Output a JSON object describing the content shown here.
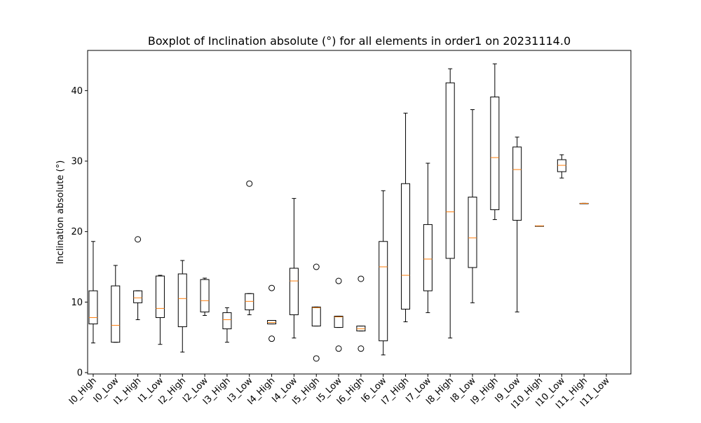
{
  "chart_data": {
    "type": "boxplot",
    "title": "Boxplot of Inclination absolute (°) for all elements in order1 on 20231114.0",
    "xlabel": "",
    "ylabel": "Inclination absolute (°)",
    "ylim": [
      -0.2,
      45.7
    ],
    "yticks": [
      0,
      10,
      20,
      30,
      40
    ],
    "categories": [
      "I0_High",
      "I0_Low",
      "I1_High",
      "I1_Low",
      "I2_High",
      "I2_Low",
      "I3_High",
      "I3_Low",
      "I4_High",
      "I4_Low",
      "I5_High",
      "I5_Low",
      "I6_High",
      "I6_Low",
      "I7_High",
      "I7_Low",
      "I8_High",
      "I8_Low",
      "I9_High",
      "I9_Low",
      "I10_High",
      "I10_Low",
      "I11_High",
      "I11_Low"
    ],
    "boxes": [
      {
        "whislo": 4.2,
        "q1": 6.9,
        "med": 7.8,
        "q3": 11.6,
        "whishi": 18.6,
        "fliers": []
      },
      {
        "whislo": 4.3,
        "q1": 4.3,
        "med": 6.7,
        "q3": 12.3,
        "whishi": 15.2,
        "fliers": []
      },
      {
        "whislo": 7.5,
        "q1": 9.9,
        "med": 10.6,
        "q3": 11.6,
        "whishi": 11.6,
        "fliers": [
          18.9
        ]
      },
      {
        "whislo": 4.0,
        "q1": 7.8,
        "med": 9.1,
        "q3": 13.7,
        "whishi": 13.8,
        "fliers": []
      },
      {
        "whislo": 2.9,
        "q1": 6.5,
        "med": 10.5,
        "q3": 14.0,
        "whishi": 15.9,
        "fliers": []
      },
      {
        "whislo": 8.1,
        "q1": 8.6,
        "med": 10.2,
        "q3": 13.2,
        "whishi": 13.4,
        "fliers": []
      },
      {
        "whislo": 4.3,
        "q1": 6.2,
        "med": 7.5,
        "q3": 8.5,
        "whishi": 9.2,
        "fliers": []
      },
      {
        "whislo": 8.2,
        "q1": 8.9,
        "med": 10.1,
        "q3": 11.2,
        "whishi": 11.2,
        "fliers": [
          26.8
        ]
      },
      {
        "whislo": 6.9,
        "q1": 6.9,
        "med": 7.1,
        "q3": 7.4,
        "whishi": 7.4,
        "fliers": [
          12.0,
          4.8
        ]
      },
      {
        "whislo": 4.9,
        "q1": 8.2,
        "med": 13.0,
        "q3": 14.8,
        "whishi": 24.7,
        "fliers": []
      },
      {
        "whislo": 6.6,
        "q1": 6.6,
        "med": 9.2,
        "q3": 9.3,
        "whishi": 9.3,
        "fliers": [
          15.0,
          2.0
        ]
      },
      {
        "whislo": 6.4,
        "q1": 6.4,
        "med": 7.9,
        "q3": 8.0,
        "whishi": 8.0,
        "fliers": [
          13.0,
          3.4
        ]
      },
      {
        "whislo": 5.9,
        "q1": 5.9,
        "med": 6.2,
        "q3": 6.6,
        "whishi": 6.6,
        "fliers": [
          13.3,
          3.4
        ]
      },
      {
        "whislo": 2.5,
        "q1": 4.5,
        "med": 15.0,
        "q3": 18.6,
        "whishi": 25.8,
        "fliers": []
      },
      {
        "whislo": 7.2,
        "q1": 9.0,
        "med": 13.8,
        "q3": 26.8,
        "whishi": 36.8,
        "fliers": []
      },
      {
        "whislo": 8.5,
        "q1": 11.6,
        "med": 16.1,
        "q3": 21.0,
        "whishi": 29.7,
        "fliers": []
      },
      {
        "whislo": 4.9,
        "q1": 16.2,
        "med": 22.8,
        "q3": 41.1,
        "whishi": 43.1,
        "fliers": []
      },
      {
        "whislo": 9.9,
        "q1": 14.9,
        "med": 19.1,
        "q3": 24.9,
        "whishi": 37.3,
        "fliers": []
      },
      {
        "whislo": 21.7,
        "q1": 23.1,
        "med": 30.5,
        "q3": 39.1,
        "whishi": 43.8,
        "fliers": []
      },
      {
        "whislo": 8.6,
        "q1": 21.6,
        "med": 28.8,
        "q3": 32.0,
        "whishi": 33.4,
        "fliers": []
      },
      {
        "whislo": 20.8,
        "q1": 20.8,
        "med": 20.8,
        "q3": 20.8,
        "whishi": 20.8,
        "fliers": []
      },
      {
        "whislo": 27.6,
        "q1": 28.5,
        "med": 29.4,
        "q3": 30.2,
        "whishi": 30.9,
        "fliers": []
      },
      {
        "whislo": 24.0,
        "q1": 24.0,
        "med": 24.0,
        "q3": 24.0,
        "whishi": 24.0,
        "fliers": []
      },
      null
    ],
    "colors": {
      "box": "#000000",
      "median": "#ff7f0e",
      "background": "#ffffff"
    },
    "grid": false,
    "legend": "none"
  }
}
